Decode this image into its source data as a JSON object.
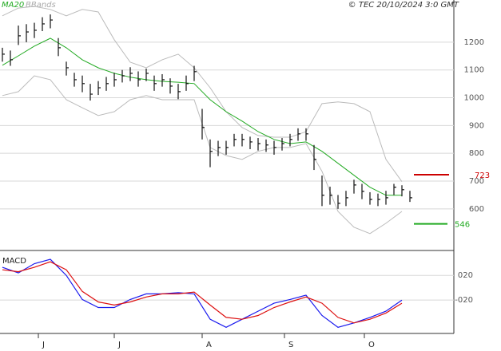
{
  "chart_data": [
    {
      "type": "stock",
      "credit": "© TEC 20/10/2024 3:0 GMT",
      "x": [
        0,
        2,
        4,
        6,
        8,
        10,
        12,
        14,
        16,
        18,
        20,
        22,
        24,
        26,
        28,
        30,
        32,
        34,
        36,
        38,
        40,
        42,
        44,
        46,
        48,
        50,
        52,
        54,
        56,
        58,
        60,
        62,
        64,
        66,
        68,
        70,
        72,
        74,
        76,
        78,
        80,
        82,
        84,
        86,
        88,
        90,
        92,
        94,
        96,
        98,
        100,
        102
      ],
      "high": [
        1180,
        1170,
        1260,
        1265,
        1270,
        1290,
        1300,
        1215,
        1130,
        1090,
        1080,
        1050,
        1060,
        1075,
        1090,
        1100,
        1110,
        1095,
        1105,
        1080,
        1085,
        1070,
        1050,
        1080,
        1115,
        960,
        850,
        845,
        845,
        870,
        870,
        860,
        855,
        850,
        845,
        855,
        870,
        890,
        890,
        830,
        720,
        680,
        650,
        665,
        705,
        690,
        660,
        655,
        665,
        690,
        685,
        665
      ],
      "low": [
        1130,
        1115,
        1190,
        1200,
        1215,
        1240,
        1250,
        1150,
        1080,
        1040,
        1020,
        990,
        1010,
        1025,
        1040,
        1055,
        1060,
        1040,
        1060,
        1025,
        1040,
        1015,
        995,
        1025,
        1060,
        850,
        750,
        790,
        795,
        825,
        825,
        815,
        810,
        805,
        795,
        810,
        825,
        845,
        845,
        740,
        610,
        615,
        600,
        610,
        655,
        635,
        615,
        610,
        615,
        650,
        645,
        625
      ],
      "close": [
        1157,
        1137,
        1223,
        1237,
        1243,
        1266,
        1280,
        1180,
        1108,
        1065,
        1051,
        1013,
        1036,
        1051,
        1065,
        1079,
        1088,
        1065,
        1088,
        1051,
        1065,
        1042,
        1022,
        1051,
        1094,
        893,
        807,
        821,
        821,
        850,
        850,
        841,
        835,
        830,
        821,
        835,
        850,
        870,
        870,
        778,
        649,
        649,
        620,
        640,
        686,
        663,
        634,
        634,
        640,
        678,
        669,
        640
      ],
      "series": [
        {
          "name": "MA20",
          "color": "#22aa22",
          "x": [
            0,
            4,
            8,
            12,
            16,
            20,
            24,
            28,
            32,
            36,
            40,
            44,
            48,
            52,
            56,
            60,
            64,
            68,
            72,
            76,
            80,
            84,
            88,
            92,
            96,
            100
          ],
          "values": [
            1117,
            1151,
            1186,
            1214,
            1180,
            1137,
            1108,
            1088,
            1074,
            1065,
            1059,
            1056,
            1051,
            993,
            950,
            916,
            878,
            850,
            835,
            841,
            807,
            764,
            721,
            678,
            649,
            649
          ]
        },
        {
          "name": "BBands",
          "color": "#bbbbbb",
          "x": [
            0,
            4,
            8,
            12,
            16,
            20,
            24,
            28,
            32,
            36,
            40,
            44,
            48,
            52,
            56,
            60,
            64,
            68,
            72,
            76,
            80,
            84,
            88,
            92,
            96,
            100
          ],
          "upper": [
            1295,
            1323,
            1329,
            1318,
            1295,
            1318,
            1309,
            1209,
            1128,
            1108,
            1137,
            1157,
            1108,
            1036,
            950,
            893,
            864,
            858,
            858,
            878,
            979,
            985,
            979,
            950,
            778,
            698
          ],
          "lower": [
            1008,
            1022,
            1079,
            1065,
            993,
            964,
            936,
            950,
            993,
            1008,
            993,
            993,
            993,
            821,
            792,
            778,
            807,
            821,
            821,
            835,
            735,
            591,
            534,
            511,
            548,
            591
          ]
        }
      ],
      "levels": [
        {
          "value": 723,
          "color": "#cc0000"
        },
        {
          "value": 546,
          "color": "#22aa22"
        }
      ],
      "xlim": [
        -0.6,
        113
      ],
      "xticks": [
        {
          "value": 9,
          "label": "J"
        },
        {
          "value": 28,
          "label": "J"
        },
        {
          "value": 50,
          "label": "A"
        },
        {
          "value": 70.6,
          "label": "S"
        },
        {
          "value": 90.6,
          "label": "O"
        }
      ],
      "ylim": [
        453,
        1352
      ],
      "yticks": [
        600,
        700,
        800,
        900,
        1000,
        1100,
        1200
      ],
      "grid": true
    },
    {
      "type": "line",
      "title": "MACD",
      "xlim": [
        -0.6,
        113
      ],
      "ylim": [
        -74,
        59
      ],
      "yticks": [
        {
          "value": 20,
          "label": "020"
        },
        {
          "value": -20,
          "label": "-020"
        }
      ],
      "grid": true,
      "series": [
        {
          "color": "#1a1aee",
          "x": [
            0,
            4,
            8,
            12,
            16,
            20,
            24,
            28,
            32,
            36,
            40,
            44,
            48,
            52,
            56,
            60,
            64,
            68,
            72,
            76,
            80,
            84,
            88,
            92,
            96,
            100
          ],
          "values": [
            33,
            24,
            39,
            46,
            20,
            -19,
            -32,
            -32,
            -19,
            -10,
            -10,
            -8,
            -10,
            -51,
            -64,
            -51,
            -38,
            -25,
            -19,
            -12,
            -45,
            -64,
            -57,
            -48,
            -38,
            -20
          ]
        },
        {
          "color": "#dd1111",
          "x": [
            0,
            4,
            8,
            12,
            16,
            20,
            24,
            28,
            32,
            36,
            40,
            44,
            48,
            52,
            56,
            60,
            64,
            68,
            72,
            76,
            80,
            84,
            88,
            92,
            96,
            100
          ],
          "values": [
            29,
            26,
            33,
            42,
            29,
            -6,
            -23,
            -28,
            -23,
            -15,
            -10,
            -10,
            -7,
            -28,
            -48,
            -51,
            -45,
            -32,
            -23,
            -15,
            -25,
            -48,
            -57,
            -51,
            -41,
            -25
          ]
        }
      ]
    }
  ]
}
